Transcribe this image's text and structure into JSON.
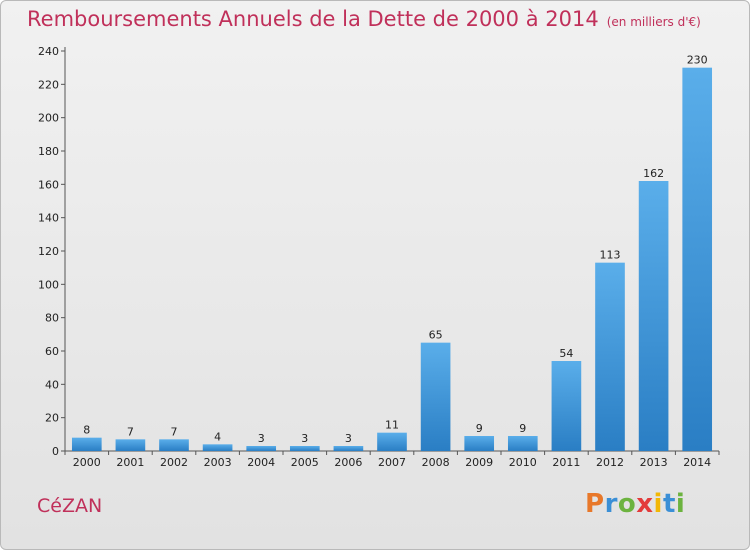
{
  "header": {
    "title": "Remboursements Annuels de la Dette de 2000 à 2014",
    "unit": "(en milliers d'€)"
  },
  "footer": {
    "commune": "CéZAN",
    "logo_letters": [
      "P",
      "r",
      "o",
      "x",
      "i",
      "t",
      "i"
    ]
  },
  "colors": {
    "title": "#c0305a",
    "bar_top": "#5aaeea",
    "bar_bottom": "#2a7ec4",
    "logo": [
      "#e8782a",
      "#3a8fd6",
      "#6cb33f",
      "#e33b3b",
      "#f2b705",
      "#3a8fd6",
      "#6cb33f"
    ]
  },
  "chart_data": {
    "type": "bar",
    "categories": [
      "2000",
      "2001",
      "2002",
      "2003",
      "2004",
      "2005",
      "2006",
      "2007",
      "2008",
      "2009",
      "2010",
      "2011",
      "2012",
      "2013",
      "2014"
    ],
    "values": [
      8,
      7,
      7,
      4,
      3,
      3,
      3,
      11,
      65,
      9,
      9,
      54,
      113,
      162,
      230
    ],
    "ylim": [
      0,
      240
    ],
    "yticks": [
      0,
      20,
      40,
      60,
      80,
      100,
      120,
      140,
      160,
      180,
      200,
      220,
      240
    ],
    "grid": false,
    "legend": "none"
  }
}
